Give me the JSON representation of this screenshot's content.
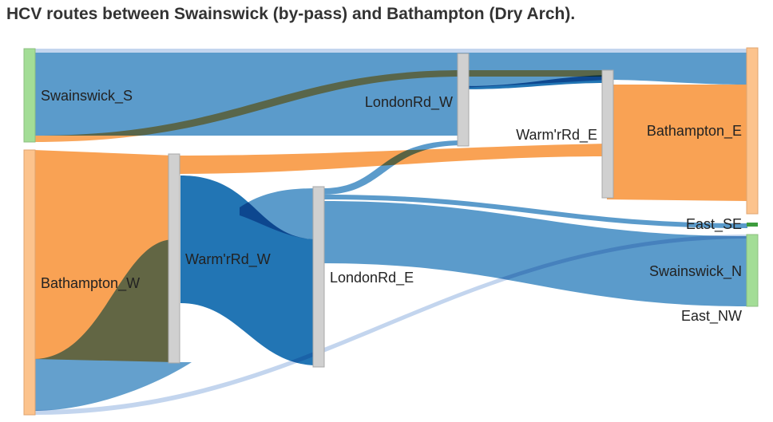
{
  "title": "HCV routes between Swainswick (by-pass) and Bathampton (Dry Arch).",
  "colors": {
    "blue_mid": "#5b9bcb",
    "blue_dark": "#2275b4",
    "blue_light": "#c3d5ee",
    "orange": "#f9a254",
    "green_node": "#a3dd96",
    "orange_node": "#fcc38d",
    "gray_node": "#d0d0d0",
    "green_dark": "#3d9c3d"
  },
  "nodes": {
    "swainswick_s": "Swainswick_S",
    "bathampton_w": "Bathampton_W",
    "warmrd_w": "Warm'rRd_W",
    "londonrd_e": "LondonRd_E",
    "londonrd_w": "LondonRd_W",
    "warmrd_e": "Warm'rRd_E",
    "bathampton_e": "Bathampton_E",
    "east_se": "East_SE",
    "swainswick_n": "Swainswick_N",
    "east_nw": "East_NW"
  }
}
